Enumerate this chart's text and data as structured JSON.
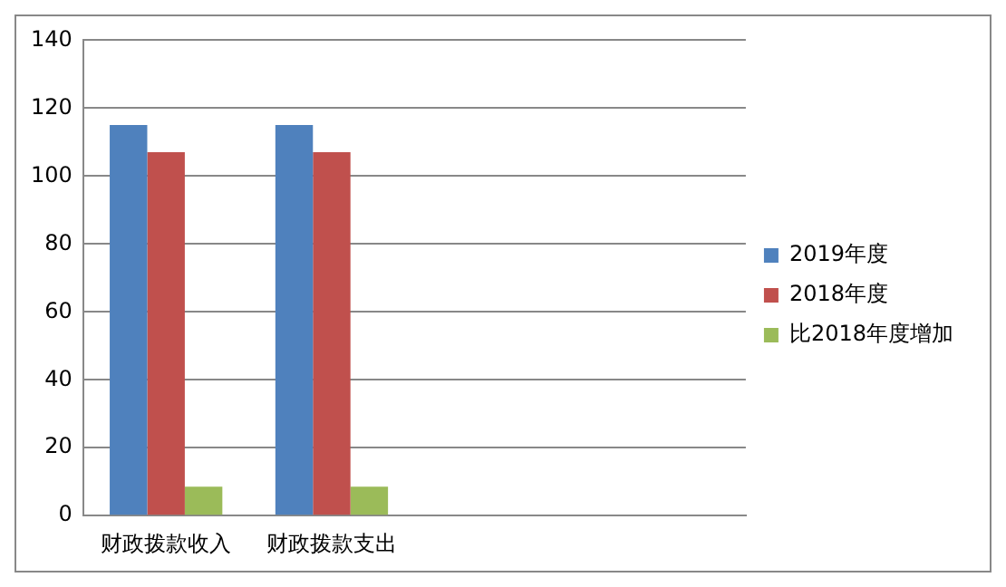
{
  "chart_data": {
    "type": "bar",
    "categories": [
      "财政拨款收入",
      "财政拨款支出",
      null,
      null
    ],
    "series": [
      {
        "name": "2019年度",
        "color": "#4f81bd",
        "values": [
          115,
          115,
          null,
          null
        ]
      },
      {
        "name": "2018年度",
        "color": "#c0504d",
        "values": [
          107,
          107,
          null,
          null
        ]
      },
      {
        "name": "比2018年度增加",
        "color": "#9bbb59",
        "values": [
          8.5,
          8.5,
          null,
          null
        ]
      }
    ],
    "ylim": [
      0,
      140
    ],
    "yticks": [
      0,
      20,
      40,
      60,
      80,
      100,
      120,
      140
    ],
    "grid": "y",
    "legend": "right"
  }
}
